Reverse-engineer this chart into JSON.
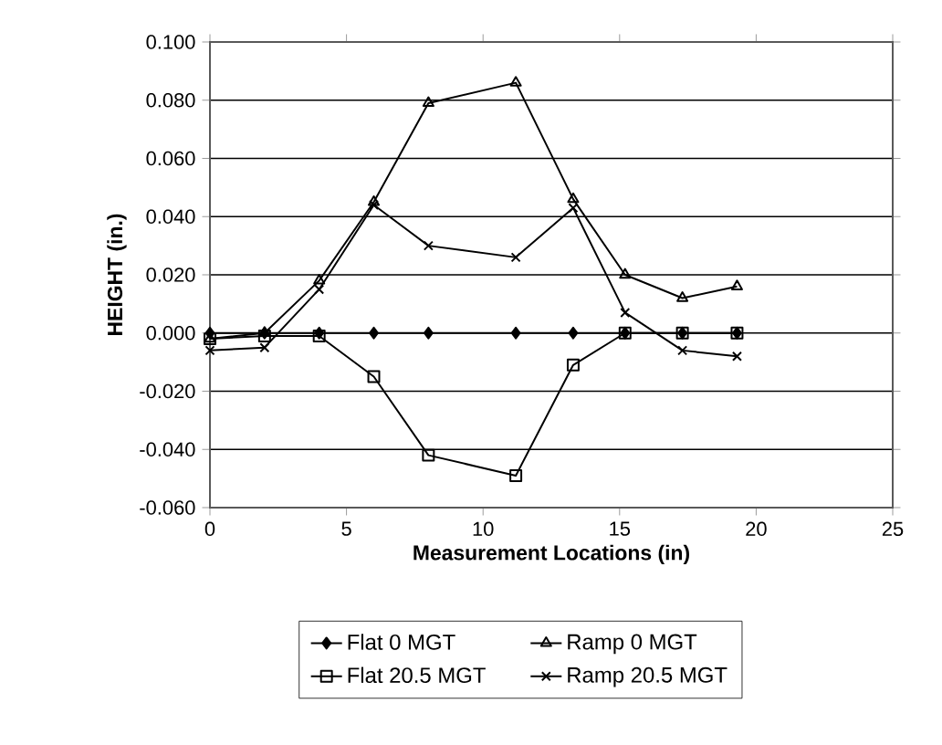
{
  "chart_data": {
    "type": "line",
    "xlabel": "Measurement Locations (in)",
    "ylabel": "HEIGHT  (in.)",
    "x": [
      0,
      2,
      4,
      6,
      8,
      11.2,
      13.3,
      15.2,
      17.3,
      19.3
    ],
    "series": [
      {
        "name": "Flat 0 MGT",
        "color": "#000000",
        "marker": "diamond",
        "values": [
          0,
          0,
          0,
          0,
          0,
          0,
          0,
          0,
          0,
          0
        ]
      },
      {
        "name": "Flat 20.5 MGT",
        "color": "#000000",
        "marker": "square",
        "values": [
          -0.002,
          -0.001,
          -0.001,
          -0.015,
          -0.042,
          -0.049,
          -0.011,
          0,
          0,
          0
        ]
      },
      {
        "name": "Ramp 0 MGT",
        "color": "#000000",
        "marker": "triangle",
        "values": [
          -0.002,
          0,
          0.018,
          0.045,
          0.079,
          0.086,
          0.046,
          0.02,
          0.012,
          0.016
        ]
      },
      {
        "name": "Ramp 20.5 MGT",
        "color": "#000000",
        "marker": "cross",
        "values": [
          -0.006,
          -0.005,
          0.015,
          0.044,
          0.03,
          0.026,
          0.043,
          0.007,
          -0.006,
          -0.008
        ]
      }
    ],
    "xlim": [
      0,
      25
    ],
    "xticks": [
      0,
      5,
      10,
      15,
      20,
      25
    ],
    "ylim": [
      -0.06,
      0.1
    ],
    "yticks": [
      {
        "value": -0.06,
        "label": "-0.060"
      },
      {
        "value": -0.04,
        "label": "-0.040"
      },
      {
        "value": -0.02,
        "label": "-0.020"
      },
      {
        "value": 0,
        "label": "0.000"
      },
      {
        "value": 0.02,
        "label": "0.020"
      },
      {
        "value": 0.04,
        "label": "0.040"
      },
      {
        "value": 0.06,
        "label": "0.060"
      },
      {
        "value": 0.08,
        "label": "0.080"
      },
      {
        "value": 0.1,
        "label": "0.100"
      }
    ],
    "grid": "y",
    "legend": "bottom",
    "line_style": "solid"
  }
}
